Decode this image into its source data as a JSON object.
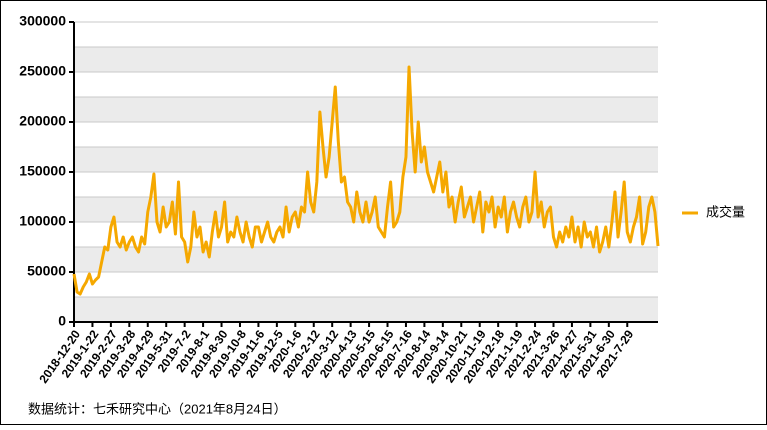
{
  "chart_data": {
    "type": "line",
    "footnote": "数据统计：七禾研究中心（2021年8月24日）",
    "categories": [
      "2018-12-20",
      null,
      null,
      null,
      null,
      null,
      "2019-1-22",
      null,
      null,
      null,
      null,
      null,
      "2019-2-27",
      null,
      null,
      null,
      null,
      null,
      "2019-3-28",
      null,
      null,
      null,
      null,
      null,
      "2019-4-29",
      null,
      null,
      null,
      null,
      null,
      "2019-5-31",
      null,
      null,
      null,
      null,
      null,
      "2019-7-2",
      null,
      null,
      null,
      null,
      null,
      "2019-8-1",
      null,
      null,
      null,
      null,
      null,
      "2019-8-30",
      null,
      null,
      null,
      null,
      null,
      "2019-10-8",
      null,
      null,
      null,
      null,
      null,
      "2019-11-6",
      null,
      null,
      null,
      null,
      null,
      "2019-12-5",
      null,
      null,
      null,
      null,
      null,
      "2020-1-6",
      null,
      null,
      null,
      null,
      null,
      "2020-2-12",
      null,
      null,
      null,
      null,
      null,
      "2020-3-12",
      null,
      null,
      null,
      null,
      null,
      "2020-4-13",
      null,
      null,
      null,
      null,
      null,
      "2020-5-15",
      null,
      null,
      null,
      null,
      null,
      "2020-6-15",
      null,
      null,
      null,
      null,
      null,
      "2020-7-16",
      null,
      null,
      null,
      null,
      null,
      "2020-8-14",
      null,
      null,
      null,
      null,
      null,
      "2020-9-14",
      null,
      null,
      null,
      null,
      null,
      "2020-10-21",
      null,
      null,
      null,
      null,
      null,
      "2020-11-19",
      null,
      null,
      null,
      null,
      null,
      "2020-12-18",
      null,
      null,
      null,
      null,
      null,
      "2021-1-19",
      null,
      null,
      null,
      null,
      null,
      "2021-2-24",
      null,
      null,
      null,
      null,
      null,
      "2021-3-26",
      null,
      null,
      null,
      null,
      null,
      "2021-4-27",
      null,
      null,
      null,
      null,
      null,
      "2021-5-31",
      null,
      null,
      null,
      null,
      null,
      "2021-6-30",
      null,
      null,
      null,
      null,
      null,
      "2021-7-29",
      null,
      null,
      null,
      null,
      null,
      null,
      null,
      null,
      null,
      null
    ],
    "series": [
      {
        "name": "成交量",
        "color": "#f5a800",
        "values": [
          48000,
          30000,
          28000,
          35000,
          40000,
          48000,
          38000,
          42000,
          45000,
          60000,
          75000,
          72000,
          95000,
          105000,
          80000,
          75000,
          85000,
          72000,
          80000,
          85000,
          75000,
          70000,
          85000,
          78000,
          110000,
          125000,
          148000,
          100000,
          90000,
          115000,
          95000,
          100000,
          120000,
          88000,
          140000,
          85000,
          80000,
          60000,
          75000,
          110000,
          85000,
          95000,
          70000,
          80000,
          65000,
          90000,
          110000,
          85000,
          95000,
          120000,
          80000,
          90000,
          85000,
          105000,
          90000,
          80000,
          100000,
          85000,
          75000,
          95000,
          95000,
          80000,
          90000,
          100000,
          85000,
          80000,
          90000,
          95000,
          85000,
          115000,
          90000,
          105000,
          110000,
          95000,
          115000,
          110000,
          150000,
          120000,
          110000,
          140000,
          210000,
          175000,
          145000,
          165000,
          200000,
          235000,
          180000,
          140000,
          145000,
          120000,
          115000,
          100000,
          130000,
          110000,
          100000,
          120000,
          100000,
          110000,
          125000,
          95000,
          90000,
          85000,
          115000,
          140000,
          95000,
          100000,
          110000,
          145000,
          165000,
          255000,
          190000,
          150000,
          200000,
          160000,
          175000,
          150000,
          140000,
          130000,
          145000,
          160000,
          130000,
          150000,
          115000,
          125000,
          100000,
          120000,
          135000,
          105000,
          115000,
          125000,
          100000,
          115000,
          130000,
          90000,
          120000,
          110000,
          125000,
          95000,
          115000,
          105000,
          125000,
          90000,
          110000,
          120000,
          105000,
          95000,
          115000,
          125000,
          100000,
          110000,
          150000,
          105000,
          120000,
          95000,
          110000,
          115000,
          85000,
          75000,
          90000,
          80000,
          95000,
          85000,
          105000,
          80000,
          95000,
          75000,
          100000,
          85000,
          90000,
          75000,
          95000,
          70000,
          80000,
          95000,
          75000,
          100000,
          130000,
          85000,
          110000,
          140000,
          90000,
          80000,
          95000,
          105000,
          125000,
          78000,
          90000,
          115000,
          125000,
          110000,
          76000
        ]
      }
    ],
    "ylim": [
      0,
      300000
    ],
    "yticks": [
      0,
      50000,
      100000,
      150000,
      200000,
      250000,
      300000
    ],
    "grid": true,
    "legend": "right"
  }
}
